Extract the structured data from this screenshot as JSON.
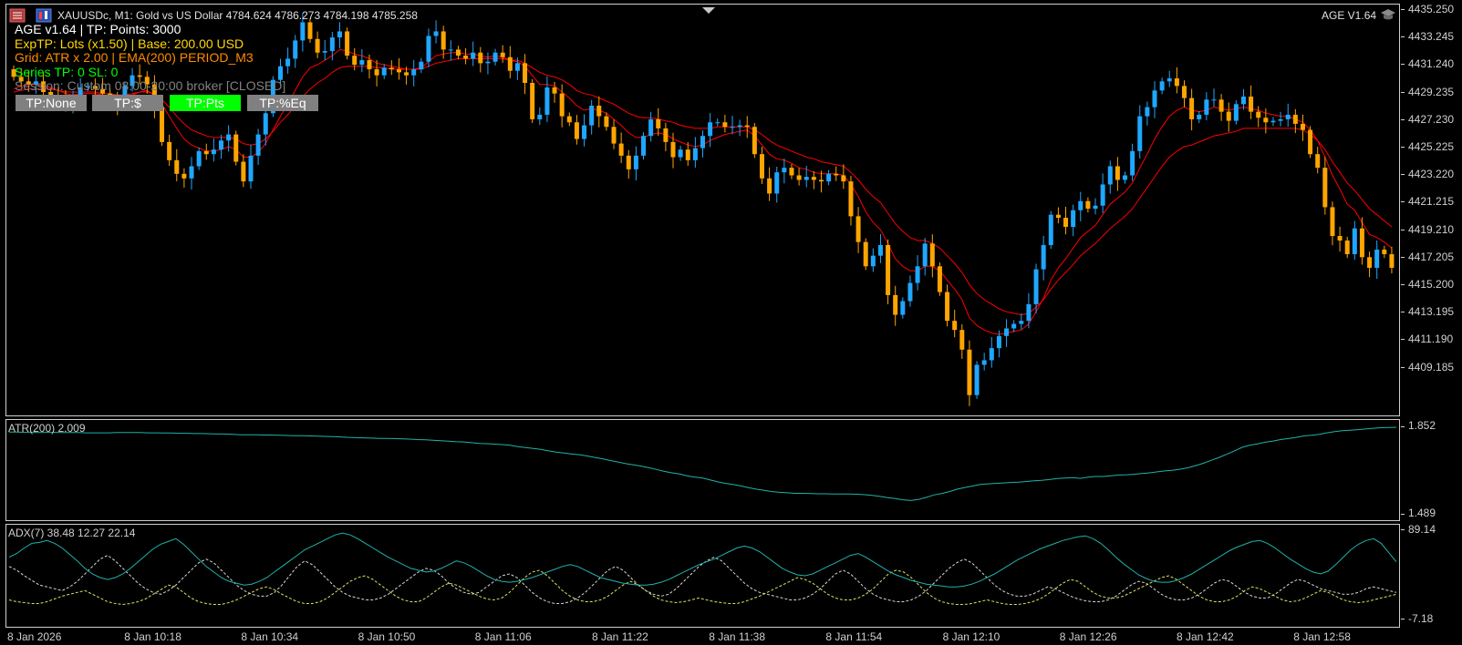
{
  "header": {
    "symbol_line": "XAUUSDc, M1:  Gold vs US Dollar  4784.624 4786.273 4784.198 4785.258",
    "ea_badge": "AGE V1.64"
  },
  "info_lines": [
    {
      "text": "AGE v1.64 | TP: Points: 3000",
      "color": "#ffffff"
    },
    {
      "text": "ExpTP: Lots (x1.50) | Base: 200.00 USD",
      "color": "#ffd700"
    },
    {
      "text": "Grid: ATR x 2.00 | EMA(200) PERIOD_M3",
      "color": "#ff8c00"
    },
    {
      "text": "Series TP: 0  SL: 0",
      "color": "#00ff00"
    },
    {
      "text": "Session: Custom 08:00-20:00 broker [CLOSED]",
      "color": "#808080"
    }
  ],
  "tp_buttons": [
    {
      "label": "TP:None",
      "active": false
    },
    {
      "label": "TP:$",
      "active": false
    },
    {
      "label": "TP:Pts",
      "active": true
    },
    {
      "label": "TP:%Eq",
      "active": false
    }
  ],
  "price_scale": [
    "4435.250",
    "4433.245",
    "4431.240",
    "4429.235",
    "4427.230",
    "4425.225",
    "4423.220",
    "4421.215",
    "4419.210",
    "4417.205",
    "4415.200",
    "4413.195",
    "4411.190",
    "4409.185"
  ],
  "atr": {
    "label": "ATR(200) 2.009",
    "scale_max": "1.852",
    "scale_min": "1.489"
  },
  "adx": {
    "label": "ADX(7) 38.48 12.27 22.14",
    "scale_max": "89.14",
    "scale_min": "-7.18"
  },
  "time_axis": [
    "8 Jan 2026",
    "8 Jan 10:18",
    "8 Jan 10:34",
    "8 Jan 10:50",
    "8 Jan 11:06",
    "8 Jan 11:22",
    "8 Jan 11:38",
    "8 Jan 11:54",
    "8 Jan 12:10",
    "8 Jan 12:26",
    "8 Jan 12:42",
    "8 Jan 12:58"
  ],
  "chart_data": {
    "type": "candlestick",
    "ylim": [
      4408.5,
      4435.25
    ],
    "bull_color": "#1fa7ff",
    "bear_color": "#ffa500",
    "ema_color": "#ff0000",
    "close": [
      4430.6,
      4430.3,
      4430.1,
      4430.3,
      4429.6,
      4429.4,
      4429.0,
      4428.8,
      4429.3,
      4429.9,
      4430.0,
      4429.8,
      4429.5,
      4429.0,
      4428.8,
      4430.0,
      4430.7,
      4430.6,
      4430.1,
      4428.6,
      4426.3,
      4425.1,
      4424.2,
      4423.9,
      4424.7,
      4425.7,
      4425.5,
      4425.8,
      4426.4,
      4426.8,
      4425.0,
      4423.7,
      4425.4,
      4426.8,
      4428.2,
      4430.4,
      4431.3,
      4431.8,
      4433.0,
      4434.2,
      4433.1,
      4432.2,
      4432.3,
      4433.2,
      4433.6,
      4432.0,
      4431.4,
      4431.7,
      4431.1,
      4430.7,
      4431.2,
      4431.1,
      4430.9,
      4430.7,
      4431.1,
      4431.6,
      4433.3,
      4433.6,
      4432.4,
      4432.4,
      4432.0,
      4431.8,
      4432.2,
      4431.5,
      4431.6,
      4432.2,
      4431.9,
      4431.0,
      4431.5,
      4430.2,
      4427.8,
      4428.1,
      4429.9,
      4429.5,
      4428.0,
      4427.6,
      4426.5,
      4427.4,
      4428.7,
      4428.0,
      4427.3,
      4426.2,
      4425.4,
      4424.5,
      4425.4,
      4426.7,
      4427.8,
      4427.2,
      4426.3,
      4425.3,
      4425.8,
      4425.1,
      4425.9,
      4426.7,
      4427.6,
      4427.6,
      4427.3,
      4427.3,
      4427.4,
      4427.3,
      4425.5,
      4423.9,
      4422.9,
      4424.3,
      4424.6,
      4424.1,
      4423.8,
      4424.0,
      4423.8,
      4423.7,
      4424.2,
      4424.1,
      4423.7,
      4421.4,
      4419.7,
      4418.1,
      4418.8,
      4419.5,
      4416.2,
      4414.9,
      4415.8,
      4417.0,
      4418.1,
      4419.6,
      4418.1,
      4416.4,
      4414.5,
      4413.9,
      4412.6,
      4409.6,
      4411.6,
      4411.9,
      4412.7,
      4413.5,
      4414.0,
      4414.3,
      4414.5,
      4415.6,
      4417.9,
      4419.5,
      4421.5,
      4421.3,
      4420.7,
      4421.8,
      4422.4,
      4421.9,
      4422.1,
      4423.5,
      4424.7,
      4423.8,
      4424.1,
      4425.7,
      4428.0,
      4428.6,
      4429.7,
      4430.3,
      4430.5,
      4430.0,
      4429.2,
      4427.8,
      4428.1,
      4429.1,
      4429.1,
      4428.3,
      4427.7,
      4428.8,
      4429.3,
      4428.3,
      4427.9,
      4427.6,
      4427.7,
      4427.8,
      4428.1,
      4427.5,
      4427.1,
      4425.5,
      4424.6,
      4422.0,
      4420.1,
      4419.8,
      4418.9,
      4420.6,
      4418.7,
      4418.0,
      4419.2,
      4418.9,
      4418.0
    ],
    "ema_fast": [
      4429.8,
      4430.0,
      4430.1,
      4430.1,
      4430.0,
      4429.9,
      4429.7,
      4429.5,
      4429.4,
      4429.5,
      4429.5,
      4429.5,
      4429.4,
      4429.3,
      4429.1,
      4429.2,
      4429.4,
      4429.6,
      4429.7,
      4429.4,
      4428.8,
      4428.0,
      4427.2,
      4426.5,
      4426.1,
      4425.9,
      4425.7,
      4425.7,
      4425.8,
      4426.0,
      4425.8,
      4425.3,
      4425.3,
      4425.6,
      4426.2,
      4427.1,
      4428.0,
      4428.8,
      4429.7,
      4430.6,
      4431.2,
      4431.4,
      4431.7,
      4432.0,
      4432.4,
      4432.3,
      4432.1,
      4432.0,
      4431.8,
      4431.5,
      4431.4,
      4431.3,
      4431.2,
      4431.1,
      4431.1,
      4431.2,
      4431.6,
      4432.0,
      4432.1,
      4432.2,
      4432.2,
      4432.1,
      4432.1,
      4432.0,
      4431.9,
      4432.0,
      4431.9,
      4431.7,
      4431.6,
      4431.3,
      4430.7,
      4430.1,
      4430.1,
      4430.0,
      4429.6,
      4429.2,
      4428.7,
      4428.4,
      4428.5,
      4428.4,
      4428.2,
      4427.8,
      4427.4,
      4426.9,
      4426.6,
      4426.6,
      4426.8,
      4426.9,
      4426.8,
      4426.5,
      4426.3,
      4426.1,
      4426.0,
      4426.1,
      4426.4,
      4426.6,
      4426.8,
      4426.9,
      4427.0,
      4427.1,
      4426.7,
      4426.1,
      4425.5,
      4425.2,
      4425.1,
      4424.9,
      4424.6,
      4424.5,
      4424.3,
      4424.2,
      4424.2,
      4424.2,
      4424.1,
      4423.5,
      4422.7,
      4421.7,
      4421.0,
      4420.5,
      4419.6,
      4418.6,
      4418.1,
      4417.8,
      4417.8,
      4418.1,
      4418.1,
      4417.8,
      4417.2,
      4416.6,
      4415.9,
      4414.7,
      4414.2,
      4413.9,
      4413.7,
      4413.6,
      4413.7,
      4413.8,
      4413.9,
      4414.3,
      4415.1,
      4416.0,
      4417.2,
      4418.0,
      4418.6,
      4419.3,
      4420.0,
      4420.4,
      4420.8,
      4421.5,
      4422.2,
      4422.6,
      4423.0,
      4423.6,
      4424.6,
      4425.5,
      4426.5,
      4427.3,
      4428.0,
      4428.4,
      4428.6,
      4428.4,
      4428.3,
      4428.4,
      4428.6,
      4428.5,
      4428.4,
      4428.5,
      4428.6,
      4428.5,
      4428.4,
      4428.2,
      4428.1,
      4428.0,
      4428.0,
      4427.8,
      4427.6,
      4427.1,
      4426.4,
      4425.3,
      4424.1,
      4423.2,
      4422.2,
      4421.8,
      4421.0,
      4420.2,
      4420.0,
      4419.7,
      4419.3
    ],
    "ema_slow": [
      4429.6,
      4429.7,
      4429.8,
      4429.8,
      4429.8,
      4429.8,
      4429.7,
      4429.6,
      4429.6,
      4429.6,
      4429.6,
      4429.6,
      4429.5,
      4429.5,
      4429.4,
      4429.4,
      4429.5,
      4429.6,
      4429.6,
      4429.5,
      4429.1,
      4428.6,
      4428.0,
      4427.5,
      4427.1,
      4426.9,
      4426.7,
      4426.6,
      4426.6,
      4426.6,
      4426.5,
      4426.2,
      4426.1,
      4426.2,
      4426.5,
      4427.0,
      4427.6,
      4428.1,
      4428.7,
      4429.3,
      4429.8,
      4430.2,
      4430.5,
      4430.9,
      4431.2,
      4431.3,
      4431.3,
      4431.3,
      4431.3,
      4431.2,
      4431.2,
      4431.1,
      4431.1,
      4431.1,
      4431.1,
      4431.1,
      4431.3,
      4431.5,
      4431.6,
      4431.7,
      4431.8,
      4431.8,
      4431.8,
      4431.8,
      4431.8,
      4431.8,
      4431.8,
      4431.7,
      4431.7,
      4431.5,
      4431.2,
      4430.9,
      4430.7,
      4430.6,
      4430.4,
      4430.1,
      4429.7,
      4429.5,
      4429.4,
      4429.2,
      4429.0,
      4428.8,
      4428.5,
      4428.2,
      4428.0,
      4427.9,
      4427.9,
      4427.8,
      4427.7,
      4427.6,
      4427.4,
      4427.3,
      4427.2,
      4427.2,
      4427.2,
      4427.3,
      4427.3,
      4427.3,
      4427.3,
      4427.3,
      4427.1,
      4426.8,
      4426.4,
      4426.1,
      4425.9,
      4425.7,
      4425.5,
      4425.3,
      4425.2,
      4425.0,
      4424.9,
      4424.8,
      4424.7,
      4424.3,
      4423.8,
      4423.2,
      4422.7,
      4422.3,
      4421.6,
      4420.9,
      4420.4,
      4420.0,
      4419.8,
      4419.8,
      4419.6,
      4419.3,
      4418.8,
      4418.3,
      4417.7,
      4416.9,
      4416.3,
      4415.9,
      4415.6,
      4415.3,
      4415.1,
      4415.0,
      4414.9,
      4415.0,
      4415.4,
      4415.9,
      4416.6,
      4417.2,
      4417.7,
      4418.2,
      4418.8,
      4419.2,
      4419.6,
      4420.1,
      4420.6,
      4421.0,
      4421.4,
      4421.9,
      4422.6,
      4423.3,
      4424.0,
      4424.7,
      4425.3,
      4425.7,
      4426.0,
      4426.1,
      4426.3,
      4426.5,
      4426.7,
      4426.8,
      4426.9,
      4427.0,
      4427.2,
      4427.2,
      4427.2,
      4427.2,
      4427.2,
      4427.2,
      4427.2,
      4427.2,
      4427.1,
      4426.8,
      4426.4,
      4425.8,
      4425.0,
      4424.3,
      4423.6,
      4423.1,
      4422.5,
      4421.9,
      4421.5,
      4421.1,
      4420.7
    ],
    "atr_values": [
      1.832,
      1.832,
      1.831,
      1.831,
      1.83,
      1.831,
      1.831,
      1.83,
      1.83,
      1.83,
      1.829,
      1.829,
      1.829,
      1.829,
      1.83,
      1.83,
      1.83,
      1.83,
      1.829,
      1.829,
      1.828,
      1.828,
      1.827,
      1.827,
      1.826,
      1.826,
      1.825,
      1.824,
      1.824,
      1.823,
      1.821,
      1.821,
      1.821,
      1.82,
      1.82,
      1.819,
      1.818,
      1.817,
      1.817,
      1.816,
      1.815,
      1.814,
      1.813,
      1.812,
      1.81,
      1.809,
      1.808,
      1.807,
      1.806,
      1.806,
      1.805,
      1.804,
      1.803,
      1.801,
      1.8,
      1.798,
      1.796,
      1.794,
      1.792,
      1.791,
      1.788,
      1.785,
      1.784,
      1.782,
      1.78,
      1.777,
      1.772,
      1.768,
      1.764,
      1.76,
      1.754,
      1.749,
      1.745,
      1.741,
      1.738,
      1.733,
      1.727,
      1.721,
      1.714,
      1.708,
      1.701,
      1.696,
      1.691,
      1.684,
      1.677,
      1.669,
      1.663,
      1.658,
      1.65,
      1.645,
      1.641,
      1.633,
      1.625,
      1.619,
      1.614,
      1.608,
      1.601,
      1.595,
      1.59,
      1.585,
      1.582,
      1.58,
      1.578,
      1.578,
      1.577,
      1.576,
      1.576,
      1.575,
      1.575,
      1.575,
      1.574,
      1.572,
      1.569,
      1.565,
      1.56,
      1.556,
      1.551,
      1.548,
      1.552,
      1.561,
      1.571,
      1.577,
      1.585,
      1.595,
      1.602,
      1.608,
      1.615,
      1.617,
      1.619,
      1.621,
      1.623,
      1.624,
      1.627,
      1.63,
      1.632,
      1.635,
      1.639,
      1.641,
      1.643,
      1.64,
      1.645,
      1.648,
      1.648,
      1.651,
      1.654,
      1.655,
      1.657,
      1.66,
      1.663,
      1.667,
      1.671,
      1.674,
      1.678,
      1.684,
      1.693,
      1.703,
      1.715,
      1.727,
      1.74,
      1.754,
      1.769,
      1.778,
      1.783,
      1.79,
      1.795,
      1.801,
      1.805,
      1.81,
      1.816,
      1.819,
      1.823,
      1.829,
      1.834,
      1.838,
      1.84,
      1.842,
      1.845,
      1.848,
      1.85,
      1.851,
      1.852
    ],
    "adx_main": [
      60,
      64,
      70,
      75,
      76,
      78,
      75,
      70,
      63,
      56,
      48,
      42,
      38,
      36,
      38,
      42,
      48,
      55,
      62,
      69,
      74,
      77,
      80,
      74,
      66,
      58,
      50,
      44,
      38,
      34,
      32,
      30,
      31,
      34,
      38,
      44,
      50,
      56,
      62,
      68,
      72,
      76,
      80,
      84,
      86,
      84,
      80,
      75,
      70,
      65,
      60,
      56,
      52,
      48,
      46,
      44,
      45,
      48,
      52,
      56,
      54,
      50,
      45,
      40,
      36,
      34,
      33,
      34,
      36,
      38,
      41,
      44,
      47,
      50,
      52,
      50,
      46,
      42,
      38,
      36,
      34,
      32,
      31,
      30,
      30,
      31,
      33,
      36,
      40,
      44,
      48,
      52,
      55,
      58,
      62,
      66,
      70,
      72,
      70,
      66,
      60,
      54,
      48,
      44,
      41,
      40,
      42,
      46,
      50,
      54,
      58,
      62,
      64,
      60,
      55,
      50,
      45,
      41,
      38,
      35,
      33,
      31,
      30,
      29,
      28,
      28,
      29,
      31,
      34,
      38,
      42,
      47,
      52,
      57,
      61,
      65,
      69,
      72,
      75,
      78,
      80,
      82,
      83,
      80,
      75,
      68,
      60,
      53,
      47,
      41,
      37,
      34,
      33,
      33,
      35,
      38,
      42,
      47,
      52,
      57,
      62,
      67,
      71,
      74,
      77,
      78,
      75,
      70,
      64,
      58,
      53,
      48,
      44,
      42,
      45,
      52,
      60,
      68,
      74,
      78,
      80,
      75,
      65,
      55
    ],
    "adx_plus_di": [
      14,
      12,
      11,
      10,
      10,
      12,
      15,
      18,
      20,
      22,
      24,
      20,
      16,
      12,
      10,
      9,
      10,
      12,
      15,
      20,
      25,
      30,
      28,
      22,
      16,
      12,
      10,
      9,
      9,
      11,
      14,
      18,
      22,
      26,
      28,
      25,
      20,
      16,
      12,
      10,
      10,
      12,
      16,
      22,
      28,
      34,
      38,
      40,
      36,
      30,
      24,
      18,
      14,
      12,
      12,
      16,
      22,
      28,
      32,
      30,
      26,
      22,
      18,
      15,
      14,
      16,
      22,
      30,
      38,
      44,
      46,
      40,
      32,
      24,
      18,
      14,
      12,
      12,
      14,
      18,
      24,
      30,
      34,
      30,
      24,
      18,
      14,
      12,
      11,
      12,
      14,
      16,
      14,
      12,
      11,
      10,
      10,
      12,
      15,
      18,
      22,
      26,
      30,
      34,
      38,
      36,
      32,
      26,
      20,
      16,
      14,
      14,
      16,
      20,
      26,
      34,
      42,
      46,
      44,
      38,
      30,
      22,
      16,
      12,
      10,
      9,
      9,
      10,
      12,
      14,
      12,
      10,
      9,
      9,
      10,
      12,
      15,
      20,
      26,
      32,
      36,
      34,
      28,
      22,
      18,
      16,
      16,
      18,
      22,
      26,
      30,
      34,
      38,
      40,
      36,
      30,
      24,
      18,
      14,
      12,
      12,
      14,
      18,
      24,
      28,
      26,
      22,
      18,
      14,
      12,
      13,
      16,
      20,
      24,
      22,
      18,
      14,
      12,
      11,
      12,
      14,
      16,
      18,
      20
    ],
    "adx_minus_di": [
      50,
      46,
      40,
      35,
      30,
      28,
      26,
      24,
      28,
      34,
      42,
      50,
      58,
      62,
      56,
      48,
      40,
      32,
      26,
      22,
      20,
      24,
      30,
      38,
      46,
      54,
      58,
      54,
      46,
      38,
      30,
      24,
      20,
      18,
      18,
      22,
      30,
      40,
      50,
      56,
      52,
      44,
      36,
      28,
      22,
      18,
      16,
      14,
      14,
      16,
      20,
      26,
      32,
      38,
      44,
      48,
      46,
      40,
      32,
      26,
      22,
      20,
      22,
      28,
      34,
      40,
      42,
      38,
      30,
      22,
      16,
      12,
      10,
      10,
      12,
      16,
      22,
      30,
      38,
      46,
      50,
      46,
      38,
      30,
      24,
      20,
      18,
      20,
      26,
      34,
      42,
      50,
      56,
      60,
      56,
      48,
      40,
      32,
      26,
      22,
      20,
      18,
      16,
      14,
      14,
      16,
      20,
      26,
      34,
      42,
      46,
      42,
      34,
      26,
      20,
      16,
      14,
      12,
      12,
      14,
      18,
      24,
      32,
      40,
      48,
      54,
      58,
      54,
      46,
      38,
      30,
      24,
      20,
      18,
      18,
      20,
      24,
      28,
      26,
      22,
      18,
      15,
      13,
      12,
      12,
      14,
      18,
      24,
      30,
      34,
      32,
      26,
      20,
      16,
      14,
      14,
      16,
      20,
      26,
      32,
      36,
      34,
      28,
      22,
      18,
      16,
      16,
      20,
      26,
      32,
      36,
      34,
      30,
      26,
      24,
      22,
      20,
      20,
      22,
      26,
      28,
      26,
      24,
      22
    ]
  }
}
